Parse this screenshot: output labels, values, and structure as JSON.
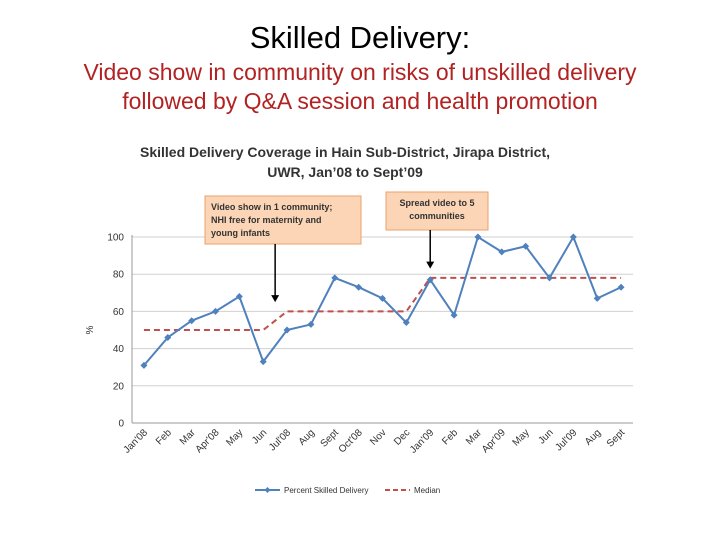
{
  "slide": {
    "title": "Skilled Delivery:",
    "subtitle_line1": "Video show in community on risks of unskilled delivery",
    "subtitle_line2": "followed by Q&A session and health promotion"
  },
  "chart_data": {
    "type": "line",
    "title_line1": "Skilled Delivery Coverage in Hain Sub-District, Jirapa District,",
    "title_line2": "UWR, Jan’08 to Sept’09",
    "ylabel": "%",
    "ylim": [
      0,
      100
    ],
    "yticks": [
      0,
      20,
      40,
      60,
      80,
      100
    ],
    "grid": true,
    "legend_position": "bottom",
    "categories": [
      "Jan'08",
      "Feb",
      "Mar",
      "Apr'08",
      "May",
      "Jun",
      "Jul'08",
      "Aug",
      "Sept",
      "Oct'08",
      "Nov",
      "Dec",
      "Jan'09",
      "Feb",
      "Mar",
      "Apr'09",
      "May",
      "Jun",
      "Jul'09",
      "Aug",
      "Sept"
    ],
    "series": [
      {
        "name": "Percent Skilled Delivery",
        "color": "#4f81bd",
        "style": "solid-with-markers",
        "values": [
          31,
          46,
          55,
          60,
          68,
          33,
          50,
          53,
          78,
          73,
          67,
          54,
          77,
          58,
          100,
          92,
          95,
          78,
          100,
          67,
          73
        ]
      },
      {
        "name": "Median",
        "color": "#c0504d",
        "style": "dashed",
        "values": [
          50,
          50,
          50,
          50,
          50,
          50,
          60,
          60,
          60,
          60,
          60,
          60,
          78,
          78,
          78,
          78,
          78,
          78,
          78,
          78,
          78
        ]
      }
    ],
    "annotations": [
      {
        "lines": [
          "Video show in 1 community;",
          "NHI free for maternity and",
          "young infants"
        ],
        "arrow_category_index": 5.5,
        "arrow_target_value": 65
      },
      {
        "lines": [
          "Spread video to 5",
          "communities"
        ],
        "arrow_category_index": 12,
        "arrow_target_value": 83
      }
    ]
  }
}
